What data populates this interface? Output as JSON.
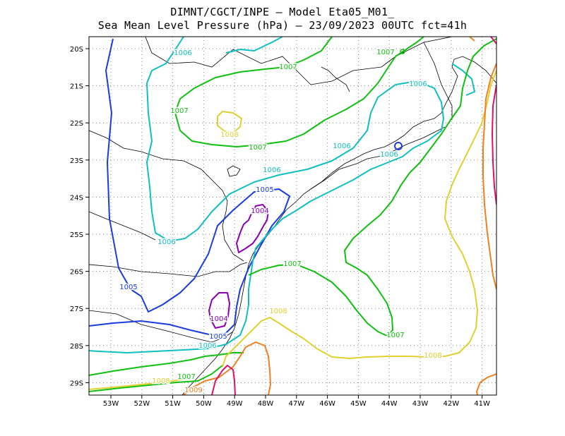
{
  "title_line1": "DIMNT/CGCT/INPE –  Model Eta05_M01_",
  "title_line2": "Sea Mean Level Pressure (hPa) – 23/09/2023 00UTC fct=41h",
  "lon_ticks": [
    "53W",
    "52W",
    "51W",
    "50W",
    "49W",
    "48W",
    "47W",
    "46W",
    "45W",
    "44W",
    "43W",
    "42W",
    "41W"
  ],
  "lat_ticks": [
    "20S",
    "21S",
    "22S",
    "23S",
    "24S",
    "25S",
    "26S",
    "27S",
    "28S",
    "29S"
  ],
  "contour_colors": {
    "1004": "#8a00b0",
    "1005": "#1a3be0",
    "1006": "#10c0c0",
    "1007": "#10c010",
    "1008": "#e0d030",
    "1009": "#f08020",
    "1010": "#e0106a"
  },
  "contour_labels": [
    {
      "text": "1006",
      "level": "1006"
    },
    {
      "text": "1007",
      "level": "1007"
    },
    {
      "text": "1007",
      "level": "1007"
    },
    {
      "text": "1007",
      "level": "1007"
    },
    {
      "text": "1008",
      "level": "1008"
    },
    {
      "text": "1007",
      "level": "1007"
    },
    {
      "text": "1006",
      "level": "1006"
    },
    {
      "text": "1006",
      "level": "1006"
    },
    {
      "text": "1006",
      "level": "1006"
    },
    {
      "text": "1006",
      "level": "1006"
    },
    {
      "text": "1005",
      "level": "1005"
    },
    {
      "text": "1004",
      "level": "1004"
    },
    {
      "text": "1006",
      "level": "1006"
    },
    {
      "text": "1007",
      "level": "1007"
    },
    {
      "text": "1005",
      "level": "1005"
    },
    {
      "text": "1004",
      "level": "1004"
    },
    {
      "text": "1008",
      "level": "1008"
    },
    {
      "text": "1005",
      "level": "1005"
    },
    {
      "text": "1006",
      "level": "1006"
    },
    {
      "text": "1007",
      "level": "1007"
    },
    {
      "text": "1008",
      "level": "1008"
    },
    {
      "text": "1007",
      "level": "1007"
    },
    {
      "text": "1008",
      "level": "1008"
    },
    {
      "text": "1009",
      "level": "1009"
    }
  ]
}
